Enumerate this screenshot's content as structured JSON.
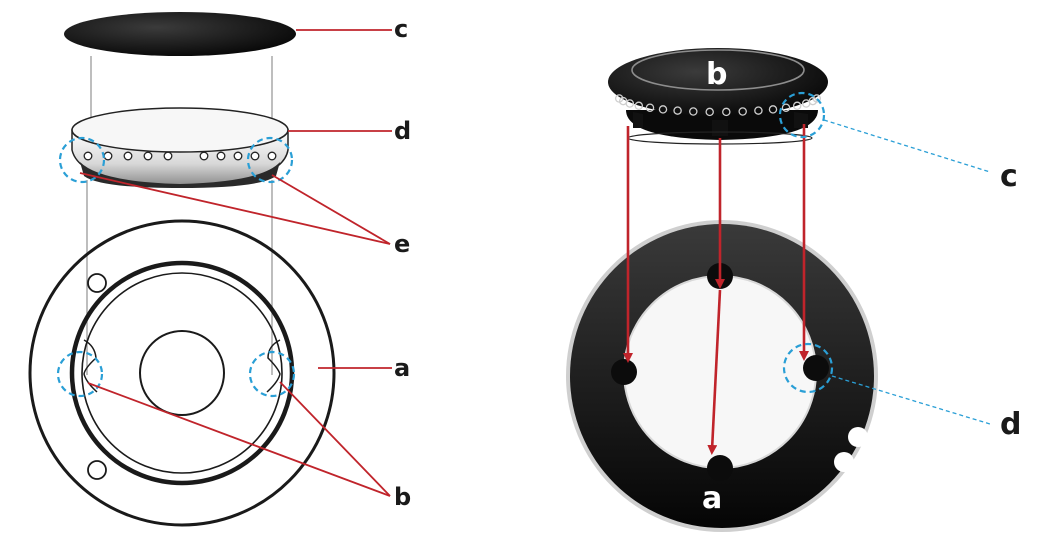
{
  "left_figure": {
    "labels": {
      "c": "c",
      "d": "d",
      "e": "e",
      "a": "a",
      "b": "b"
    },
    "burner_ports_left": 5,
    "burner_ports_right": 5
  },
  "right_figure": {
    "labels": {
      "b": "b",
      "c": "c",
      "a": "a",
      "d": "d"
    },
    "cap_label": "b",
    "base_label": "a"
  },
  "colors": {
    "leader_red": "#c0242b",
    "highlight_blue": "#2a9fd6",
    "outline": "#1a1a1a",
    "part_black": "#0c0c0c"
  }
}
